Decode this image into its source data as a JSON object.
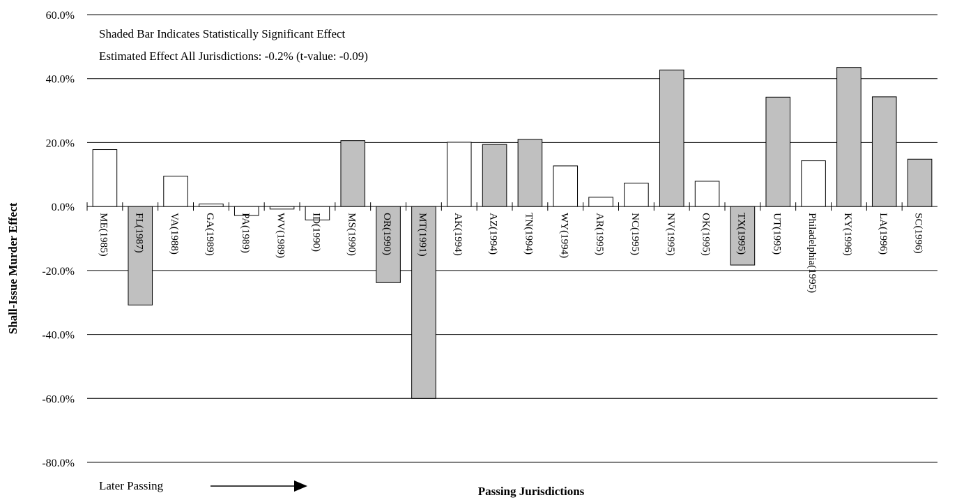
{
  "chart_data": {
    "type": "bar",
    "ylabel": "Shall-Issue Murder Effect",
    "xlabel": "Passing Jurisdictions",
    "annotations": [
      "Shaded Bar Indicates Statistically Significant Effect",
      "Estimated Effect All Jurisdictions:  -0.2% (t-value: -0.09)"
    ],
    "later_passing_label": "Later Passing",
    "ylim": [
      -80,
      60
    ],
    "yticks": [
      60,
      40,
      20,
      0,
      -20,
      -40,
      -60,
      -80
    ],
    "ytick_labels": [
      "60.0%",
      "40.0%",
      "20.0%",
      "0.0%",
      "-20.0%",
      "-40.0%",
      "-60.0%",
      "-80.0%"
    ],
    "grid": true,
    "categories": [
      "ME(1985)",
      "FL(1987)",
      "VA(1988)",
      "GA(1989)",
      "PA(1989)",
      "WV(1989)",
      "ID(1990)",
      "MS(1990)",
      "OR(1990)",
      "MT(1991)",
      "AK(1994)",
      "AZ(1994)",
      "TN(1994)",
      "WY(1994)",
      "AR(1995)",
      "NC(1995)",
      "NV(1995)",
      "OK(1995)",
      "TX(1995)",
      "UT(1995)",
      "Philadelphia(1995)",
      "KY(1996)",
      "LA(1996)",
      "SC(1996)"
    ],
    "values": [
      17.8,
      -30.8,
      9.5,
      0.8,
      -2.8,
      -0.8,
      -4.2,
      20.6,
      -23.8,
      -60.0,
      20.1,
      19.4,
      21.0,
      12.7,
      2.9,
      7.3,
      42.7,
      7.9,
      -18.3,
      34.2,
      14.3,
      43.5,
      34.3,
      14.8
    ],
    "significant": [
      false,
      true,
      false,
      false,
      false,
      false,
      false,
      true,
      true,
      true,
      false,
      true,
      true,
      false,
      false,
      false,
      true,
      false,
      true,
      true,
      false,
      true,
      true,
      true
    ],
    "colors": {
      "significant": "#c0c0c0",
      "not_significant": "#ffffff",
      "stroke": "#000000"
    }
  }
}
